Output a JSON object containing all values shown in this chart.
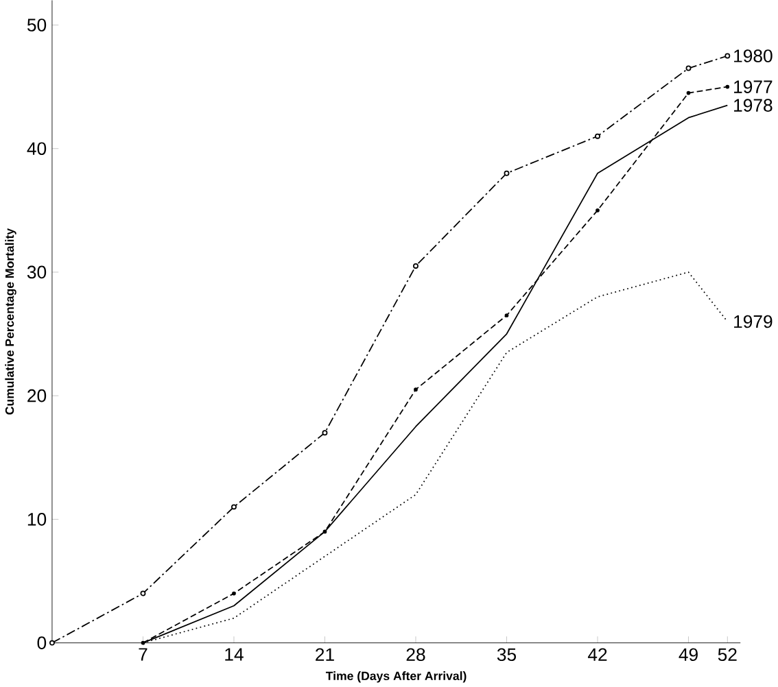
{
  "chart_data": {
    "type": "line",
    "xlabel": "Time (Days After Arrival)",
    "ylabel": "Cumulative Percentage Mortality",
    "xlim": [
      0,
      53
    ],
    "ylim": [
      0,
      52
    ],
    "xticks": [
      7,
      14,
      21,
      28,
      35,
      42,
      49,
      52
    ],
    "yticks": [
      0,
      10,
      20,
      30,
      40,
      50
    ],
    "series": [
      {
        "name": "1980",
        "color": "#000000",
        "line_style": "dashdot",
        "marker": "circle",
        "x": [
          0,
          7,
          14,
          21,
          28,
          35,
          42,
          49,
          52
        ],
        "values": [
          0,
          4,
          11,
          17,
          30.5,
          38,
          41,
          46.5,
          47.5
        ]
      },
      {
        "name": "1977",
        "color": "#000000",
        "line_style": "dashed",
        "marker": "dot",
        "x": [
          7,
          14,
          21,
          28,
          35,
          42,
          49,
          52
        ],
        "values": [
          0,
          4,
          9,
          20.5,
          26.5,
          35,
          44.5,
          45
        ]
      },
      {
        "name": "1978",
        "color": "#000000",
        "line_style": "solid",
        "marker": "none",
        "x": [
          7,
          14,
          21,
          28,
          35,
          42,
          49,
          52
        ],
        "values": [
          0,
          3,
          9,
          17.5,
          25,
          38,
          42.5,
          43.5
        ]
      },
      {
        "name": "1979",
        "color": "#000000",
        "line_style": "dotted",
        "marker": "none",
        "x": [
          7,
          14,
          21,
          28,
          35,
          42,
          49,
          52
        ],
        "values": [
          0,
          2,
          7,
          12,
          23.5,
          28,
          30,
          26
        ]
      }
    ]
  }
}
